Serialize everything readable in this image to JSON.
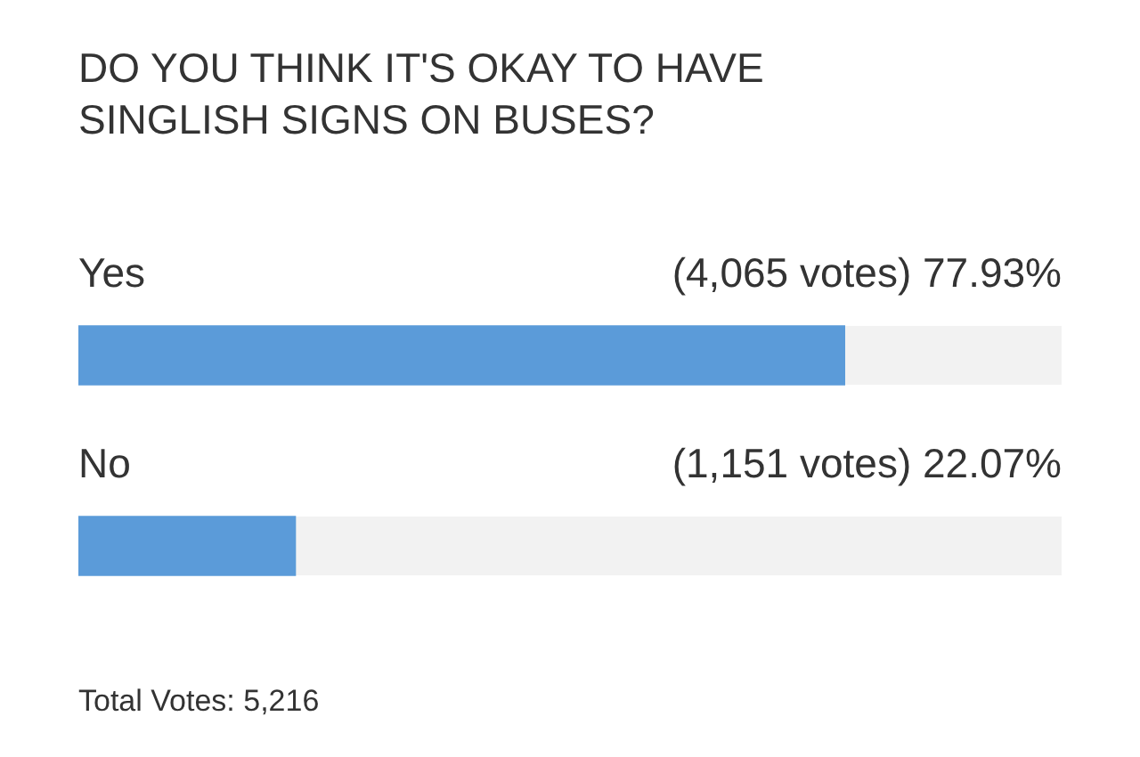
{
  "chart_data": {
    "type": "bar",
    "orientation": "horizontal",
    "title": "DO YOU THINK IT'S OKAY TO HAVE SINGLISH SIGNS ON BUSES?",
    "categories": [
      "Yes",
      "No"
    ],
    "values": [
      77.93,
      22.07
    ],
    "value_labels": [
      "(4,065 votes) 77.93%",
      "(1,151 votes) 22.07%"
    ],
    "color": "#5b9bd9",
    "tick_labels": false,
    "legend": false,
    "annotations": [
      "Total Votes: 5,216"
    ]
  }
}
